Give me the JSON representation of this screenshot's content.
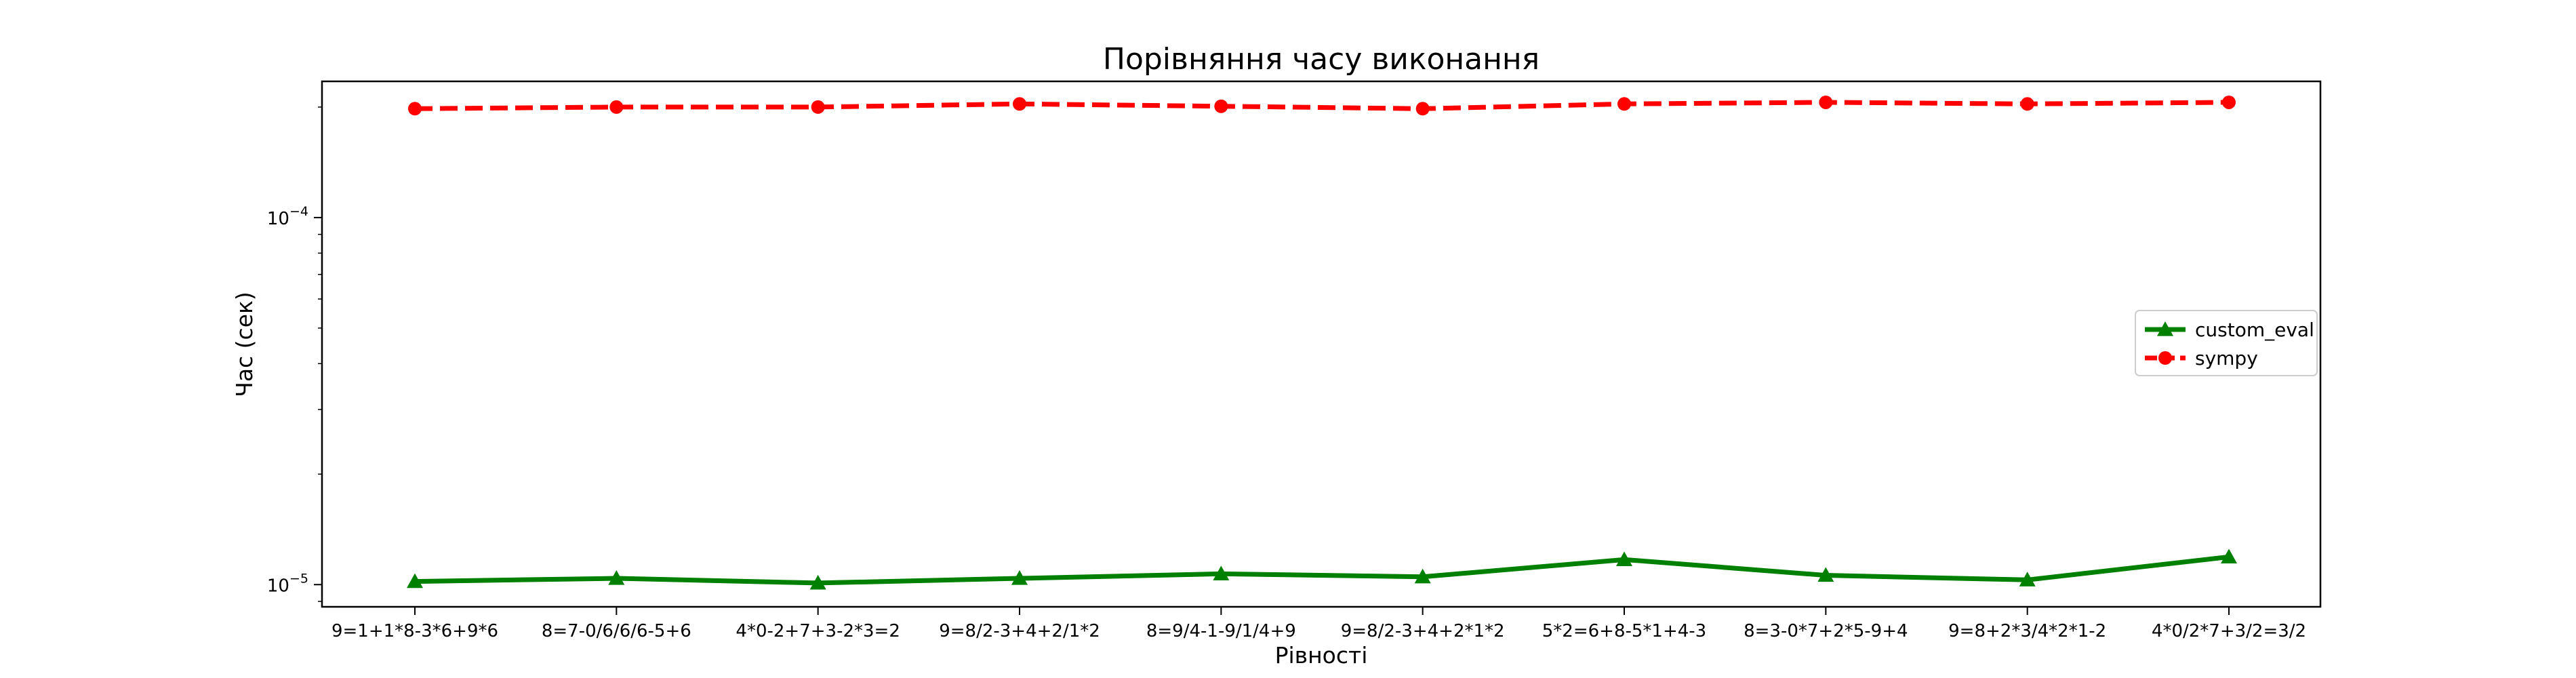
{
  "chart_data": {
    "type": "line",
    "title": "Порівняння часу виконання",
    "xlabel": "Рівності",
    "ylabel": "Час (сек)",
    "yscale": "log",
    "ylim": [
      8.7e-06,
      0.000235
    ],
    "y_ticks": [
      {
        "value": 1e-05,
        "base": "10",
        "exp": "−5"
      },
      {
        "value": 0.0001,
        "base": "10",
        "exp": "−4"
      }
    ],
    "categories": [
      "9=1+1*8-3*6+9*6",
      "8=7-0/6/6/6-5+6",
      "4*0-2+7+3-2*3=2",
      "9=8/2-3+4+2/1*2",
      "8=9/4-1-9/1/4+9",
      "9=8/2-3+4+2*1*2",
      "5*2=6+8-5*1+4-3",
      "8=3-0*7+2*5-9+4",
      "9=8+2*3/4*2*1-2",
      "4*0/2*7+3/2=3/2"
    ],
    "series": [
      {
        "name": "custom_eval",
        "color": "#008000",
        "line_style": "solid",
        "marker": "triangle",
        "values": [
          1.02e-05,
          1.04e-05,
          1.01e-05,
          1.04e-05,
          1.07e-05,
          1.05e-05,
          1.17e-05,
          1.06e-05,
          1.03e-05,
          1.19e-05
        ]
      },
      {
        "name": "sympy",
        "color": "#ff0000",
        "line_style": "dashed",
        "marker": "circle",
        "values": [
          0.000198,
          0.0002,
          0.0002,
          0.000204,
          0.000201,
          0.000198,
          0.000204,
          0.000206,
          0.000204,
          0.000206
        ]
      }
    ],
    "legend_position": "center-right",
    "grid": false
  }
}
